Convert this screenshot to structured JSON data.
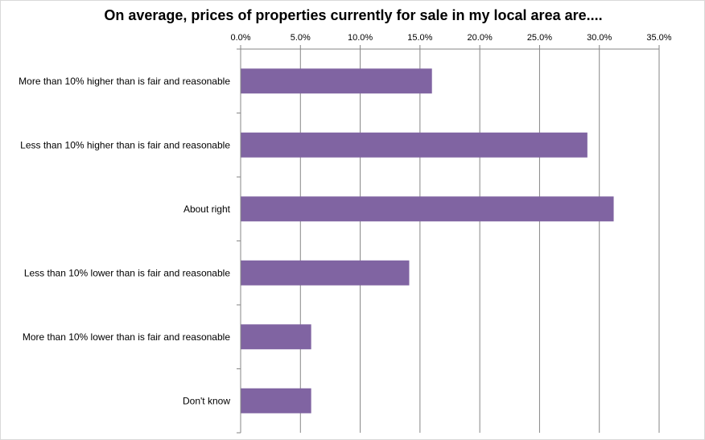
{
  "chart_data": {
    "type": "bar",
    "orientation": "horizontal",
    "title": "On average, prices of properties currently for sale in my local area are....",
    "categories": [
      "More than 10% higher than is fair and reasonable",
      "Less than 10% higher than is fair and reasonable",
      "About right",
      "Less than 10% lower than is fair and reasonable",
      "More than 10% lower than is fair and reasonable",
      "Don't know"
    ],
    "values": [
      16.0,
      29.0,
      31.2,
      14.1,
      5.9,
      5.9
    ],
    "xlim": [
      0,
      35
    ],
    "x_ticks": [
      "0.0%",
      "5.0%",
      "10.0%",
      "15.0%",
      "20.0%",
      "25.0%",
      "30.0%",
      "35.0%"
    ],
    "x_axis_position": "top",
    "grid": "vertical",
    "legend": "none",
    "colors": {
      "bar": "#8064a2",
      "gridline": "#868686",
      "axis": "#868686"
    }
  }
}
